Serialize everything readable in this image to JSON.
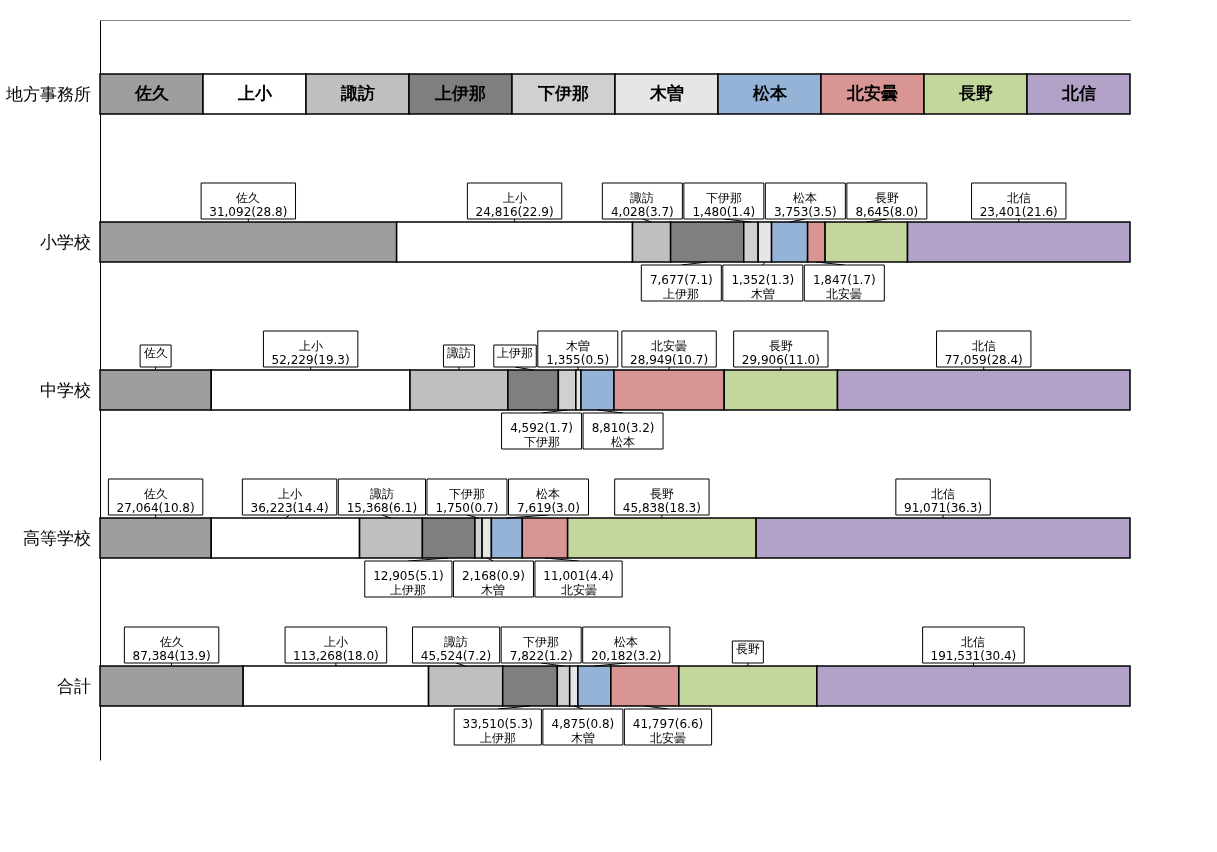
{
  "chart_data": {
    "type": "bar",
    "orientation": "horizontal",
    "stacked": true,
    "legend": "top",
    "legend_title": "地方事務所",
    "tick_labels": "y",
    "grid": false,
    "categories": [
      "小学校",
      "中学校",
      "高等学校",
      "合計"
    ],
    "xlim": [
      0,
      100
    ],
    "series": [
      {
        "name": "佐久",
        "color": "#9e9e9e",
        "values": [
          28.8,
          10.8,
          10.8,
          13.9
        ],
        "value_labels": [
          "31,092(28.8)",
          null,
          "27,064(10.8)",
          "87,384(13.9)"
        ]
      },
      {
        "name": "上小",
        "color": "#ffffff",
        "values": [
          22.9,
          19.3,
          14.4,
          18.0
        ],
        "value_labels": [
          "24,816(22.9)",
          "52,229(19.3)",
          "36,223(14.4)",
          "113,268(18.0)"
        ]
      },
      {
        "name": "諏訪",
        "color": "#bfbfbf",
        "values": [
          3.7,
          9.5,
          6.1,
          7.2
        ],
        "value_labels": [
          "4,028(3.7)",
          null,
          "15,368(6.1)",
          "45,524(7.2)"
        ]
      },
      {
        "name": "上伊那",
        "color": "#7f7f7f",
        "values": [
          7.1,
          4.9,
          5.1,
          5.3
        ],
        "value_labels": [
          "7,677(7.1)",
          null,
          "12,905(5.1)",
          "33,510(5.3)"
        ]
      },
      {
        "name": "下伊那",
        "color": "#d0d0d0",
        "values": [
          1.4,
          1.7,
          0.7,
          1.2
        ],
        "value_labels": [
          "1,480(1.4)",
          "4,592(1.7)",
          "1,750(0.7)",
          "7,822(1.2)"
        ]
      },
      {
        "name": "木曽",
        "color": "#e6e6e6",
        "values": [
          1.3,
          0.5,
          0.9,
          0.8
        ],
        "value_labels": [
          "1,352(1.3)",
          "1,355(0.5)",
          "2,168(0.9)",
          "4,875(0.8)"
        ]
      },
      {
        "name": "松本",
        "color": "#95b3d7",
        "values": [
          3.5,
          3.2,
          3.0,
          3.2
        ],
        "value_labels": [
          "3,753(3.5)",
          "8,810(3.2)",
          "7,619(3.0)",
          "20,182(3.2)"
        ]
      },
      {
        "name": "北安曇",
        "color": "#d99594",
        "values": [
          1.7,
          10.7,
          4.4,
          6.6
        ],
        "value_labels": [
          "1,847(1.7)",
          "28,949(10.7)",
          "11,001(4.4)",
          "41,797(6.6)"
        ]
      },
      {
        "name": "長野",
        "color": "#c3d69b",
        "values": [
          8.0,
          11.0,
          18.3,
          13.4
        ],
        "value_labels": [
          "8,645(8.0)",
          "29,906(11.0)",
          "45,838(18.3)",
          null
        ]
      },
      {
        "name": "北信",
        "color": "#b3a2c7",
        "values": [
          21.6,
          28.4,
          36.3,
          30.4
        ],
        "value_labels": [
          "23,401(21.6)",
          "77,059(28.4)",
          "91,071(36.3)",
          "191,531(30.4)"
        ]
      }
    ]
  }
}
